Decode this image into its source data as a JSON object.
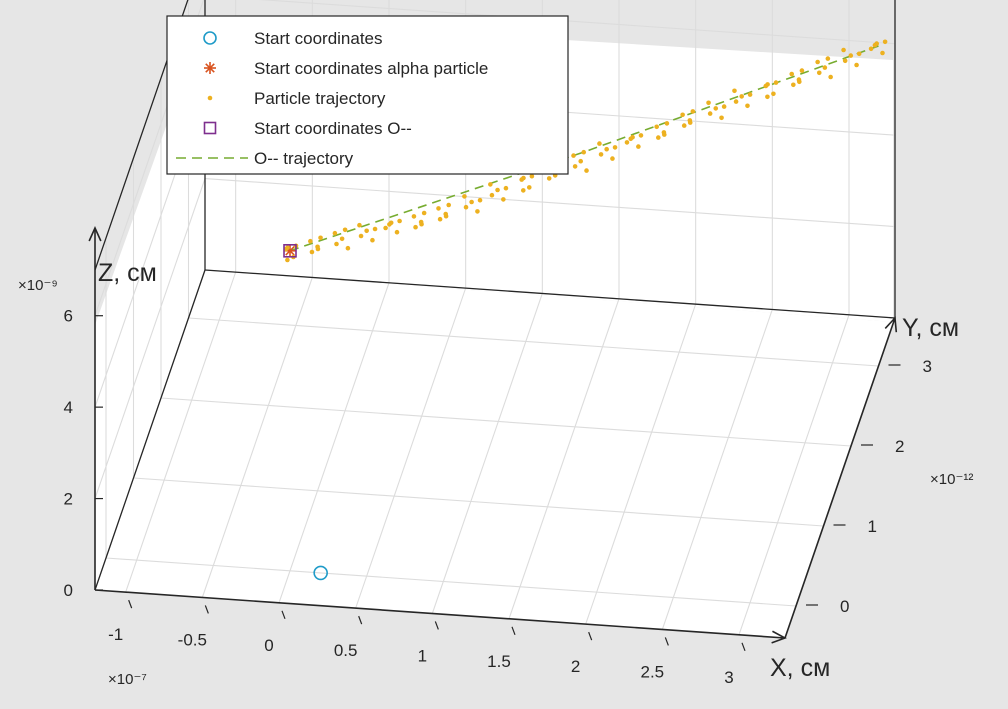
{
  "chart_data": {
    "type": "scatter",
    "view": "3d",
    "grid": true,
    "legend_position": "top-left",
    "xlabel": "X, см",
    "ylabel": "Y, см",
    "zlabel": "Z, см",
    "x_exponent": "×10⁻⁷",
    "y_exponent": "×10⁻¹²",
    "z_exponent": "×10⁻⁹",
    "x_ticks": [
      "-1",
      "-0.5",
      "0",
      "0.5",
      "1",
      "1.5",
      "2",
      "2.5",
      "3"
    ],
    "y_ticks": [
      "0",
      "1",
      "2",
      "3"
    ],
    "z_ticks": [
      "0",
      "2",
      "4",
      "6"
    ],
    "xlim": [
      -1.2,
      3.3
    ],
    "ylim": [
      -0.4,
      3.6
    ],
    "zlim": [
      0,
      7
    ],
    "legend": [
      {
        "label": "Start coordinates",
        "marker": "circle",
        "color": "#1f9bc8"
      },
      {
        "label": "Start coordinates alpha particle",
        "marker": "asterisk",
        "color": "#d9531f"
      },
      {
        "label": "Particle trajectory",
        "marker": "dot",
        "color": "#edb120"
      },
      {
        "label": "Start coordinates O--",
        "marker": "square",
        "color": "#7e2f8e"
      },
      {
        "label": "O-- trajectory",
        "marker": "dashed-line",
        "color": "#77ac30"
      }
    ],
    "series": [
      {
        "name": "Start coordinates",
        "points": [
          [
            0.2,
            0,
            0
          ]
        ]
      },
      {
        "name": "Start coordinates alpha particle",
        "points": [
          [
            0,
            0,
            7
          ]
        ]
      },
      {
        "name": "Particle trajectory",
        "points": [
          [
            0,
            0,
            7
          ],
          [
            0.15,
            0.1,
            7
          ],
          [
            0.3,
            0.2,
            7
          ],
          [
            0.45,
            0.3,
            7
          ],
          [
            0.6,
            0.4,
            7
          ],
          [
            0.75,
            0.5,
            7
          ],
          [
            0.9,
            0.6,
            7
          ],
          [
            1.05,
            0.75,
            7
          ],
          [
            1.2,
            0.9,
            7
          ],
          [
            1.35,
            1.05,
            7
          ],
          [
            1.5,
            1.2,
            7
          ],
          [
            1.65,
            1.35,
            7
          ],
          [
            1.8,
            1.5,
            7
          ],
          [
            1.95,
            1.65,
            7
          ],
          [
            2.1,
            1.8,
            7
          ],
          [
            2.25,
            1.95,
            7
          ],
          [
            2.4,
            2.1,
            7
          ],
          [
            2.55,
            2.25,
            7
          ],
          [
            2.7,
            2.4,
            7
          ],
          [
            2.85,
            2.55,
            7
          ],
          [
            3.0,
            2.7,
            7
          ],
          [
            3.15,
            2.85,
            7
          ],
          [
            3.3,
            3.0,
            7
          ]
        ]
      },
      {
        "name": "Start coordinates O--",
        "points": [
          [
            0,
            0,
            7
          ]
        ]
      },
      {
        "name": "O-- trajectory",
        "points": [
          [
            0,
            0,
            7
          ],
          [
            1.65,
            1.45,
            7
          ],
          [
            3.3,
            3.0,
            7
          ]
        ]
      }
    ]
  }
}
